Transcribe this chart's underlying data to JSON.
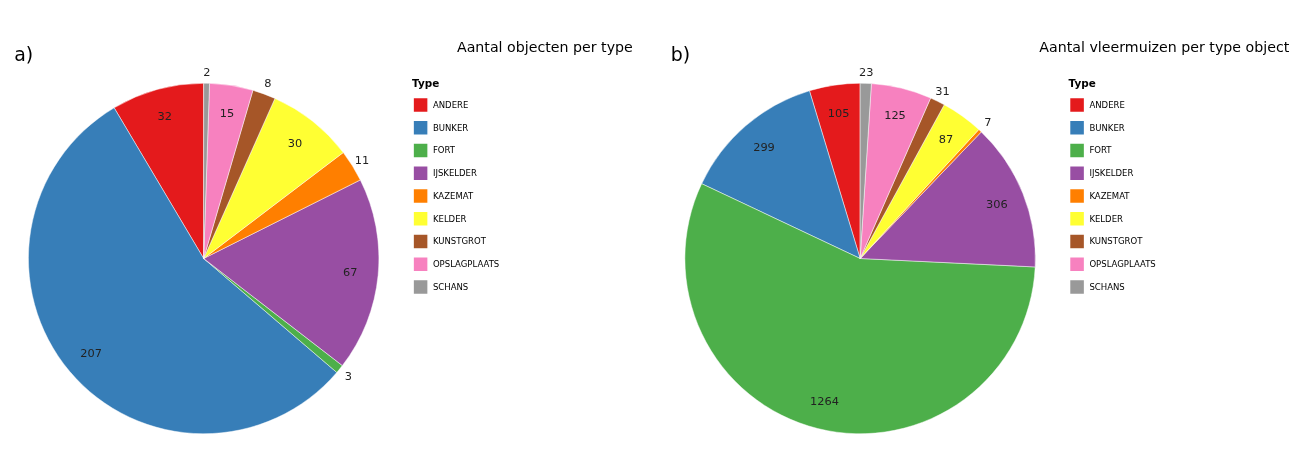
{
  "chart_data": [
    {
      "type": "pie",
      "title": "Aantal objecten per type",
      "legend_title": "Type",
      "annotations": [
        "a)"
      ],
      "legend": "right",
      "data_labels": true,
      "categories": [
        "ANDERE",
        "BUNKER",
        "FORT",
        "IJSKELDER",
        "KAZEMAT",
        "KELDER",
        "KUNSTGROT",
        "OPSLAGPLAATS",
        "SCHANS"
      ],
      "values": [
        32,
        207,
        3,
        67,
        11,
        30,
        8,
        15,
        2
      ],
      "colors": [
        "#e41a1c",
        "#377eb8",
        "#4daf4a",
        "#984ea3",
        "#ff7f00",
        "#ffff33",
        "#a65628",
        "#f781bf",
        "#999999"
      ]
    },
    {
      "type": "pie",
      "title": "Aantal vleermuizen per type object",
      "legend_title": "Type",
      "annotations": [
        "b)"
      ],
      "legend": "right",
      "data_labels": true,
      "categories": [
        "ANDERE",
        "BUNKER",
        "FORT",
        "IJSKELDER",
        "KAZEMAT",
        "KELDER",
        "KUNSTGROT",
        "OPSLAGPLAATS",
        "SCHANS"
      ],
      "values": [
        105,
        299,
        1264,
        306,
        7,
        87,
        31,
        125,
        23
      ],
      "colors": [
        "#e41a1c",
        "#377eb8",
        "#4daf4a",
        "#984ea3",
        "#ff7f00",
        "#ffff33",
        "#a65628",
        "#f781bf",
        "#999999"
      ]
    }
  ]
}
